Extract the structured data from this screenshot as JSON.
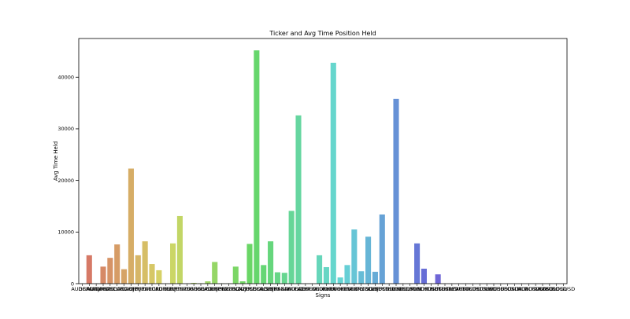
{
  "chart_data": {
    "type": "bar",
    "title": "Ticker and Avg Time Position Held",
    "xlabel": "Signs",
    "ylabel": "Avg Time Held",
    "ylim": [
      0,
      47500
    ],
    "yticks": [
      0,
      10000,
      20000,
      30000,
      40000
    ],
    "grid": false,
    "categories": [
      "AUDCAD",
      "GBPAUD",
      "AUDJPY",
      "AUDNZD",
      "AUDSGD",
      "AUDUSD",
      "CADCHF",
      "CADJPY",
      "CHFJPY",
      "EURAUD",
      "EURCAD",
      "EURCHF",
      "EURGBP",
      "EURJPY",
      "EURNZD",
      "EURSGD",
      "EURUSD",
      "GBPCAD",
      "GBPCHF",
      "GBPJPY",
      "GBPNZD",
      "GBPUSD",
      "NZDCAD",
      "NZDJPY",
      "NZDUSD",
      "USDCAD",
      "USDCHF",
      "USDJPY",
      "USDSGD",
      "XAGUSD",
      "XAUUSD",
      "AUDCHF",
      "CADSGD",
      "CHFSGD",
      "EURDKK",
      "EURHUF",
      "EURNOK",
      "EURPLN",
      "EURSEK",
      "EURTRY",
      "GBPSGD",
      "NZDCHF",
      "SGDJPY",
      "USDCNH",
      "USDDKK",
      "USDHKD",
      "USDHUF",
      "USDMXN",
      "USDNOK",
      "USDPLN",
      "USDSEK",
      "USDTHB",
      "USDTRY",
      "USDZAR",
      "XPDUSD",
      "XPTUSD",
      "BTCUSD",
      "ETHUSD",
      "LTCUSD",
      "XRPUSD",
      "BCHUSD",
      "DSHUSD",
      "EOSUSD",
      "XLMUSD",
      "ADAUSD",
      "DOTUSD",
      "LNKUSD",
      "UNIUSD",
      "SOLUSD",
      "DOGUSD"
    ],
    "values": [
      0,
      5500,
      0,
      3300,
      5000,
      7600,
      2800,
      22300,
      5500,
      8200,
      3800,
      2600,
      0,
      7800,
      13100,
      0,
      150,
      80,
      450,
      4200,
      60,
      40,
      3300,
      450,
      7700,
      45200,
      3600,
      8200,
      2200,
      2100,
      14100,
      32600,
      0,
      0,
      5500,
      3200,
      42800,
      1200,
      3600,
      10500,
      2400,
      9100,
      2300,
      13400,
      0,
      35800,
      0,
      0,
      7800,
      2900,
      0,
      1800,
      0,
      0,
      0,
      0,
      0,
      0,
      0,
      0,
      0,
      0,
      0,
      0,
      0,
      0,
      0,
      0,
      0,
      0
    ],
    "visible_tick_text": "AUDCADAUDJPY..."
  }
}
